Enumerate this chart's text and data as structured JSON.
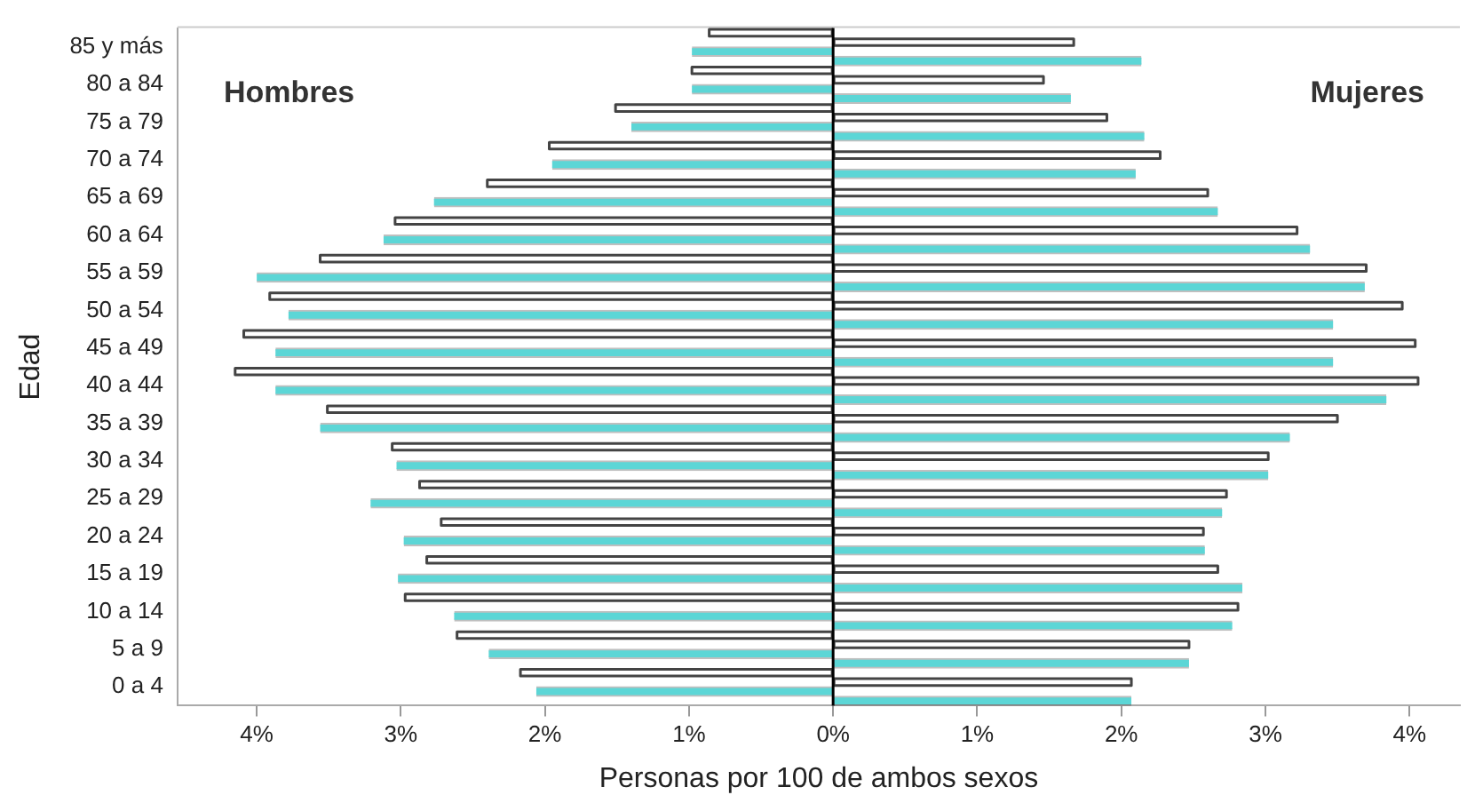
{
  "chart_data": {
    "type": "bar",
    "orientation": "horizontal",
    "xlabel": "Personas por 100 de ambos sexos",
    "ylabel": "Edad",
    "categories": [
      "85 y más",
      "80 a 84",
      "75 a 79",
      "70 a 74",
      "65 a 69",
      "60 a 64",
      "55 a 59",
      "50 a 54",
      "45 a 49",
      "40 a 44",
      "35 a 39",
      "30 a 34",
      "25 a 29",
      "20 a 24",
      "15 a 19",
      "10 a 14",
      "5 a 9",
      "0 a 4"
    ],
    "series": [
      {
        "color": "#5cd6d6",
        "values": [
          -0.98,
          -0.98,
          -1.4,
          -1.95,
          -2.77,
          -3.12,
          -4.0,
          -3.78,
          -3.87,
          -3.87,
          -3.56,
          -3.03,
          -3.21,
          -2.98,
          -3.02,
          -2.63,
          -2.39,
          -2.06
        ]
      },
      {
        "color": "#5cd6d6",
        "values": [
          2.14,
          1.65,
          2.16,
          2.1,
          2.67,
          3.31,
          3.69,
          3.47,
          3.47,
          3.84,
          3.17,
          3.02,
          2.7,
          2.58,
          2.84,
          2.77,
          2.47,
          2.07
        ]
      },
      {
        "line_style": "solid",
        "color": "#444444",
        "values": [
          -0.86,
          -0.98,
          -1.51,
          -1.97,
          -2.4,
          -3.04,
          -3.56,
          -3.91,
          -4.09,
          -4.15,
          -3.51,
          -3.06,
          -2.87,
          -2.72,
          -2.82,
          -2.97,
          -2.61,
          -2.17
        ]
      },
      {
        "line_style": "solid",
        "color": "#444444",
        "values": [
          1.67,
          1.46,
          1.9,
          2.27,
          2.6,
          3.22,
          3.7,
          3.95,
          4.04,
          4.06,
          3.5,
          3.02,
          2.73,
          2.57,
          2.67,
          2.81,
          2.47,
          2.07
        ]
      }
    ],
    "xlim": [
      -4.55,
      4.35
    ],
    "xticks": [
      {
        "value": -4,
        "label": "4%"
      },
      {
        "value": -3,
        "label": "3%"
      },
      {
        "value": -2,
        "label": "2%"
      },
      {
        "value": -1,
        "label": "1%"
      },
      {
        "value": 0,
        "label": "0%"
      },
      {
        "value": 1,
        "label": "1%"
      },
      {
        "value": 2,
        "label": "2%"
      },
      {
        "value": 3,
        "label": "3%"
      },
      {
        "value": 4,
        "label": "4%"
      }
    ],
    "ref_lines": [
      {
        "axis": "x",
        "value": 0,
        "color": "#000000"
      }
    ],
    "annotations": [
      "Hombres",
      "Mujeres"
    ],
    "grid": false,
    "legend": false
  }
}
